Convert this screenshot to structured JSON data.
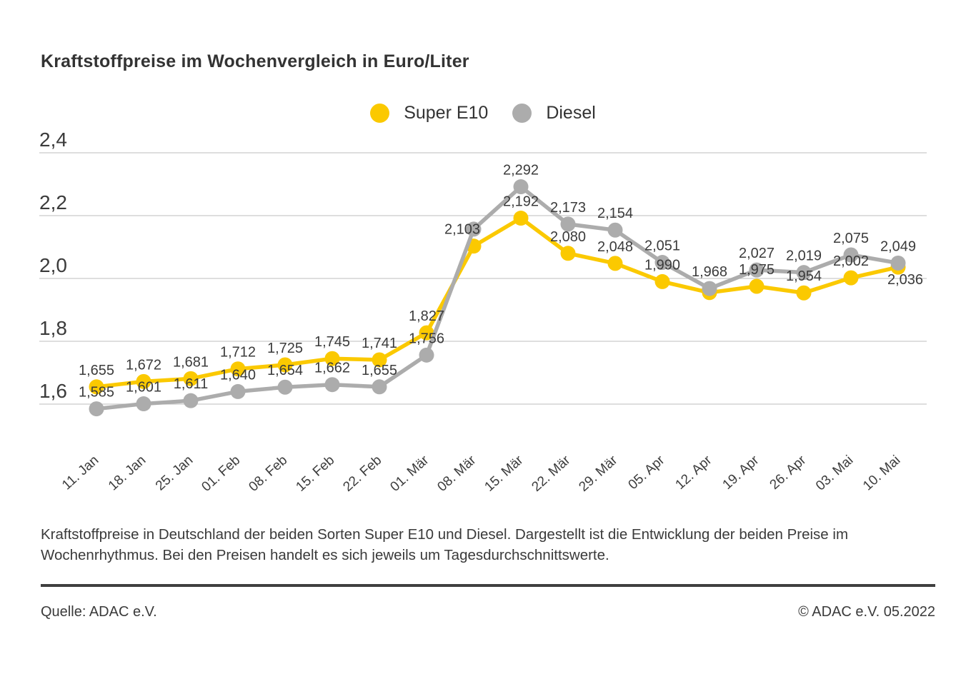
{
  "title": "Kraftstoffpreise im Wochenvergleich in Euro/Liter",
  "legend": [
    {
      "label": "Super E10",
      "color": "#FBC900"
    },
    {
      "label": "Diesel",
      "color": "#ACACAC"
    }
  ],
  "description": "Kraftstoffpreise in Deutschland der beiden Sorten Super E10 und Diesel. Dargestellt ist die Entwicklung der beiden Preise im Wochenrhythmus. Bei den Preisen handelt es sich jeweils um Tagesdurchschnittswerte.",
  "footer": {
    "source": "Quelle: ADAC e.V.",
    "copyright": "© ADAC e.V. 05.2022"
  },
  "colors": {
    "super_e10": "#FBC900",
    "diesel": "#ACACAC",
    "grid": "#CBCBCB",
    "text": "#3B3B3B",
    "title": "#333333",
    "rule": "#3F3F3F",
    "background": "#FFFFFF"
  },
  "chart_data": {
    "type": "line",
    "title": "Kraftstoffpreise im Wochenvergleich in Euro/Liter",
    "xlabel": "",
    "ylabel": "Euro/Liter",
    "categories": [
      "11. Jan",
      "18. Jan",
      "25. Jan",
      "01. Feb",
      "08. Feb",
      "15. Feb",
      "22. Feb",
      "01. Mär",
      "08. Mär",
      "15. Mär",
      "22. Mär",
      "29. Mär",
      "05. Apr",
      "12. Apr",
      "19. Apr",
      "26. Apr",
      "03. Mai",
      "10. Mai"
    ],
    "series": [
      {
        "name": "Super E10",
        "color": "#FBC900",
        "values": [
          1.655,
          1.672,
          1.681,
          1.712,
          1.725,
          1.745,
          1.741,
          1.827,
          2.103,
          2.192,
          2.08,
          2.048,
          1.99,
          1.955,
          1.975,
          1.954,
          2.002,
          2.036
        ],
        "point_labels": [
          "1,655",
          "1,672",
          "1,681",
          "1,712",
          "1,725",
          "1,745",
          "1,741",
          "1,827",
          "2,103",
          "2,192",
          "2,080",
          "2,048",
          "1,990",
          "",
          "1,975",
          "1,954",
          "2,002",
          "2,036"
        ]
      },
      {
        "name": "Diesel",
        "color": "#ACACAC",
        "values": [
          1.585,
          1.601,
          1.611,
          1.64,
          1.654,
          1.662,
          1.655,
          1.756,
          2.157,
          2.292,
          2.173,
          2.154,
          2.051,
          1.968,
          2.027,
          2.019,
          2.075,
          2.049
        ],
        "point_labels": [
          "1,585",
          "1,601",
          "1,611",
          "1,640",
          "1,654",
          "1,662",
          "1,655",
          "1,756",
          "",
          "2,292",
          "2,173",
          "2,154",
          "2,051",
          "1,968",
          "2,027",
          "2,019",
          "2,075",
          "2,049"
        ]
      }
    ],
    "yticks": [
      2.4,
      2.2,
      2.0,
      1.8,
      1.6
    ],
    "ytick_labels": [
      "2,4",
      "2,2",
      "2,0",
      "1,8",
      "1,6"
    ],
    "ylim": [
      1.5,
      2.45
    ],
    "grid": true,
    "legend_position": "top-center"
  }
}
